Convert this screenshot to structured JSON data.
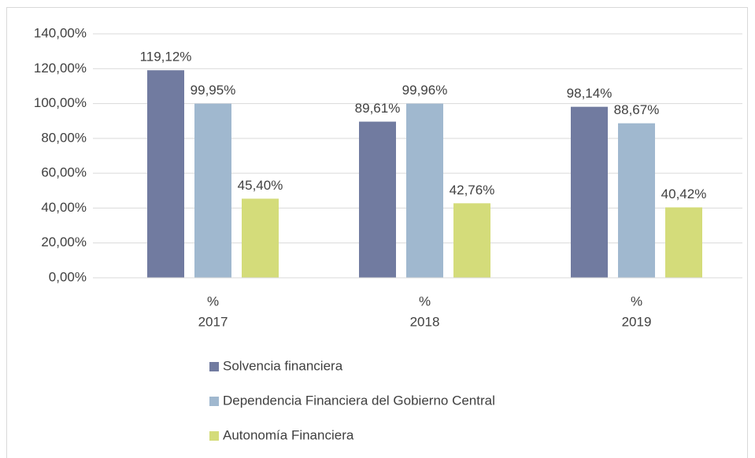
{
  "chart_data": {
    "type": "bar",
    "categories": [
      [
        "%",
        "2017"
      ],
      [
        "%",
        "2018"
      ],
      [
        "%",
        "2019"
      ]
    ],
    "series": [
      {
        "name": "Solvencia financiera",
        "color": "#717ba0",
        "values": [
          119.12,
          89.61,
          98.14
        ],
        "value_labels": [
          "119,12%",
          "89,61%",
          "98,14%"
        ]
      },
      {
        "name": "Dependencia Financiera del Gobierno Central",
        "color": "#a0b8cf",
        "values": [
          99.95,
          99.96,
          88.67
        ],
        "value_labels": [
          "99,95%",
          "99,96%",
          "88,67%"
        ]
      },
      {
        "name": "Autonomía Financiera",
        "color": "#d4dc7a",
        "values": [
          45.4,
          42.76,
          40.42
        ],
        "value_labels": [
          "45,40%",
          "42,76%",
          "40,42%"
        ]
      }
    ],
    "ylim": [
      0,
      140
    ],
    "yticks": [
      {
        "value": 0,
        "label": "0,00%"
      },
      {
        "value": 20,
        "label": "20,00%"
      },
      {
        "value": 40,
        "label": "40,00%"
      },
      {
        "value": 60,
        "label": "60,00%"
      },
      {
        "value": 80,
        "label": "80,00%"
      },
      {
        "value": 100,
        "label": "100,00%"
      },
      {
        "value": 120,
        "label": "120,00%"
      },
      {
        "value": 140,
        "label": "140,00%"
      }
    ],
    "grid": true,
    "legend": "bottom"
  }
}
